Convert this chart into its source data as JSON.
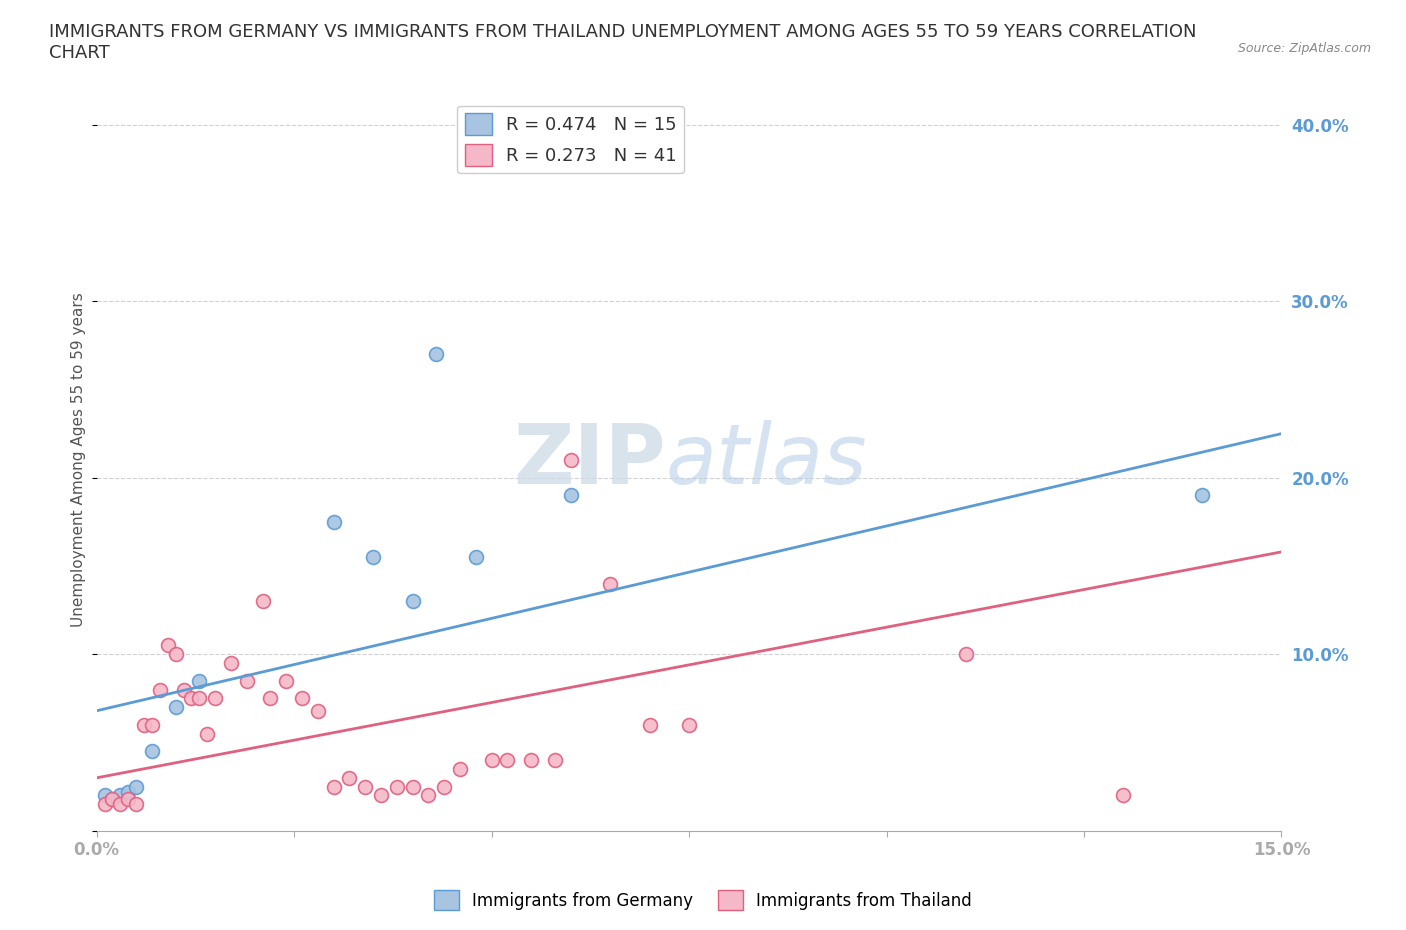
{
  "title": "IMMIGRANTS FROM GERMANY VS IMMIGRANTS FROM THAILAND UNEMPLOYMENT AMONG AGES 55 TO 59 YEARS CORRELATION\nCHART",
  "source_text": "Source: ZipAtlas.com",
  "ylabel_text": "Unemployment Among Ages 55 to 59 years",
  "xlim": [
    0.0,
    0.15
  ],
  "ylim": [
    0.0,
    0.42
  ],
  "xticks": [
    0.0,
    0.025,
    0.05,
    0.075,
    0.1,
    0.125,
    0.15
  ],
  "xtick_labels": [
    "0.0%",
    "",
    "",
    "",
    "",
    "",
    "15.0%"
  ],
  "yticks": [
    0.0,
    0.1,
    0.2,
    0.3,
    0.4
  ],
  "ytick_labels": [
    "",
    "10.0%",
    "20.0%",
    "30.0%",
    "40.0%"
  ],
  "germany_color": "#a8c4e0",
  "germany_edge": "#5b9bd5",
  "thailand_color": "#f4b8c8",
  "thailand_edge": "#e06080",
  "germany_line_color": "#5b9bd5",
  "thailand_line_color": "#e06080",
  "legend_R_germany": "R = 0.474",
  "legend_N_germany": "N = 15",
  "legend_R_thailand": "R = 0.273",
  "legend_N_thailand": "N = 41",
  "germany_x": [
    0.001,
    0.002,
    0.003,
    0.004,
    0.005,
    0.007,
    0.01,
    0.013,
    0.03,
    0.035,
    0.04,
    0.043,
    0.048,
    0.06,
    0.14
  ],
  "germany_y": [
    0.02,
    0.018,
    0.02,
    0.022,
    0.025,
    0.045,
    0.07,
    0.085,
    0.175,
    0.155,
    0.13,
    0.27,
    0.155,
    0.19,
    0.19
  ],
  "thailand_x": [
    0.001,
    0.002,
    0.003,
    0.004,
    0.005,
    0.006,
    0.007,
    0.008,
    0.009,
    0.01,
    0.011,
    0.012,
    0.013,
    0.014,
    0.015,
    0.017,
    0.019,
    0.021,
    0.022,
    0.024,
    0.026,
    0.028,
    0.03,
    0.032,
    0.034,
    0.036,
    0.038,
    0.04,
    0.042,
    0.044,
    0.046,
    0.05,
    0.052,
    0.055,
    0.058,
    0.06,
    0.065,
    0.07,
    0.075,
    0.11,
    0.13
  ],
  "thailand_y": [
    0.015,
    0.018,
    0.015,
    0.018,
    0.015,
    0.06,
    0.06,
    0.08,
    0.105,
    0.1,
    0.08,
    0.075,
    0.075,
    0.055,
    0.075,
    0.095,
    0.085,
    0.13,
    0.075,
    0.085,
    0.075,
    0.068,
    0.025,
    0.03,
    0.025,
    0.02,
    0.025,
    0.025,
    0.02,
    0.025,
    0.035,
    0.04,
    0.04,
    0.04,
    0.04,
    0.21,
    0.14,
    0.06,
    0.06,
    0.1,
    0.02
  ],
  "germany_line_x0": 0.0,
  "germany_line_y0": 0.068,
  "germany_line_x1": 0.15,
  "germany_line_y1": 0.225,
  "thailand_line_x0": 0.0,
  "thailand_line_y0": 0.03,
  "thailand_line_x1": 0.15,
  "thailand_line_y1": 0.158,
  "watermark_ZIP": "ZIP",
  "watermark_atlas": "atlas",
  "background_color": "#ffffff",
  "grid_color": "#cccccc",
  "tick_color": "#5b9bd5",
  "title_fontsize": 13,
  "label_fontsize": 11,
  "tick_fontsize": 12,
  "marker_size": 100
}
